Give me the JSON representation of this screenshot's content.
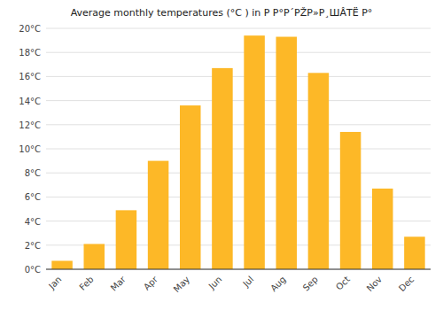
{
  "chart_data": {
    "type": "bar",
    "title": "Average monthly temperatures (°C ) in Р Р°Р´РŽР»Р¸ШÂТЁ Р°",
    "categories": [
      "Jan",
      "Feb",
      "Mar",
      "Apr",
      "May",
      "Jun",
      "Jul",
      "Aug",
      "Sep",
      "Oct",
      "Nov",
      "Dec"
    ],
    "values": [
      0.7,
      2.1,
      4.9,
      9.0,
      13.6,
      16.7,
      19.4,
      19.3,
      16.3,
      11.4,
      6.7,
      2.7
    ],
    "color": "#FDB827",
    "ylim": [
      0,
      20
    ],
    "yticks": [
      {
        "value": 0,
        "label": "0°C"
      },
      {
        "value": 2,
        "label": "2°C"
      },
      {
        "value": 4,
        "label": "4°C"
      },
      {
        "value": 6,
        "label": "6°C"
      },
      {
        "value": 8,
        "label": "8°C"
      },
      {
        "value": 10,
        "label": "10°C"
      },
      {
        "value": 12,
        "label": "12°C"
      },
      {
        "value": 14,
        "label": "14°C"
      },
      {
        "value": 16,
        "label": "16°C"
      },
      {
        "value": 18,
        "label": "18°C"
      },
      {
        "value": 20,
        "label": "20°C"
      }
    ],
    "grid": true
  }
}
